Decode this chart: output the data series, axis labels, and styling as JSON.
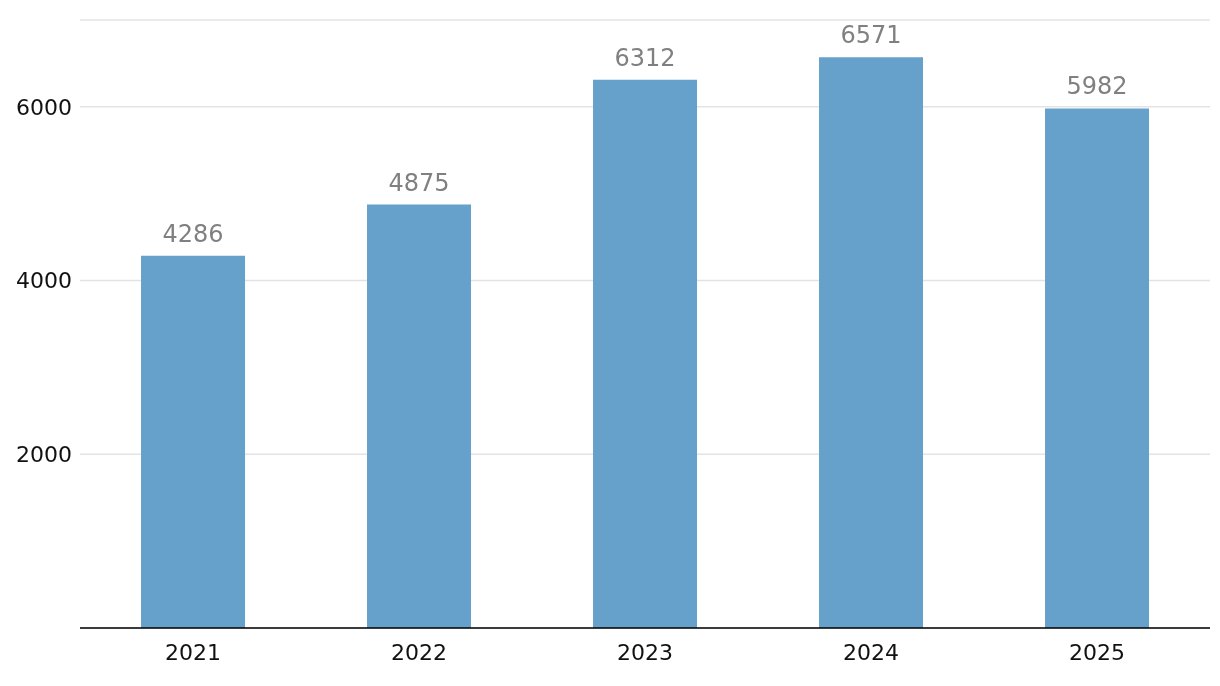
{
  "chart_data": {
    "type": "bar",
    "categories": [
      "2021",
      "2022",
      "2023",
      "2024",
      "2025"
    ],
    "values": [
      4286,
      4875,
      6312,
      6571,
      5982
    ],
    "color": "#66a1cc",
    "ylim": [
      0,
      7000
    ],
    "yticks": [
      2000,
      4000,
      6000
    ],
    "grid": "y",
    "data_labels": true
  }
}
